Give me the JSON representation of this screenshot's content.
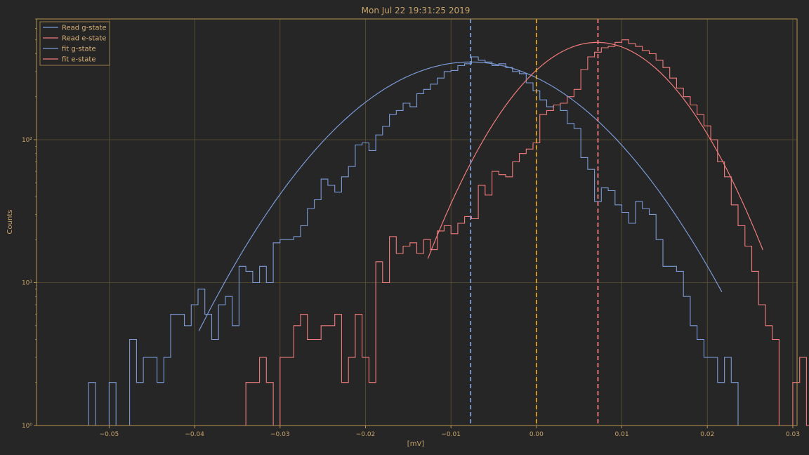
{
  "chart_data": {
    "type": "line",
    "title": "Mon Jul 22 19:31:25 2019",
    "xlabel": "[mV]",
    "ylabel": "Counts",
    "xlim": [
      -0.0585,
      0.0305
    ],
    "ylim": [
      1,
      700
    ],
    "y_scale": "log",
    "grid": true,
    "legend_position": "top-left",
    "x_ticks": [
      -0.05,
      -0.04,
      -0.03,
      -0.02,
      -0.01,
      0.0,
      0.01,
      0.02,
      0.03
    ],
    "x_tick_labels": [
      "−0.05",
      "−0.04",
      "−0.03",
      "−0.02",
      "−0.01",
      "0.00",
      "0.01",
      "0.02",
      "0.03"
    ],
    "y_ticks": [
      1,
      10,
      100
    ],
    "y_tick_labels": [
      "10⁰",
      "10¹",
      "10²"
    ],
    "colors": {
      "background": "#262626",
      "grid": "#5e5233",
      "axis": "#b5934f",
      "text": "#c8a46a",
      "g_state": "#7c9ad6",
      "e_state": "#f27c7c",
      "threshold": "#e0a020"
    },
    "histograms": [
      {
        "name": "Read g-state",
        "color": "#7c9ad6",
        "bins": [
          [
            -0.052,
            2
          ],
          [
            -0.0512,
            1
          ],
          [
            -0.0504,
            1
          ],
          [
            -0.0496,
            2
          ],
          [
            -0.0488,
            1
          ],
          [
            -0.048,
            1
          ],
          [
            -0.0472,
            4
          ],
          [
            -0.0464,
            2
          ],
          [
            -0.0456,
            3
          ],
          [
            -0.0448,
            3
          ],
          [
            -0.044,
            2
          ],
          [
            -0.0432,
            3
          ],
          [
            -0.0424,
            6
          ],
          [
            -0.0416,
            6
          ],
          [
            -0.0408,
            5
          ],
          [
            -0.04,
            7
          ],
          [
            -0.0392,
            9
          ],
          [
            -0.0384,
            6
          ],
          [
            -0.0376,
            4
          ],
          [
            -0.0368,
            7
          ],
          [
            -0.036,
            8
          ],
          [
            -0.0352,
            5
          ],
          [
            -0.0344,
            13
          ],
          [
            -0.0336,
            12
          ],
          [
            -0.0328,
            10
          ],
          [
            -0.032,
            13
          ],
          [
            -0.0312,
            10
          ],
          [
            -0.0304,
            19
          ],
          [
            -0.0296,
            20
          ],
          [
            -0.0288,
            20
          ],
          [
            -0.028,
            21
          ],
          [
            -0.0272,
            25
          ],
          [
            -0.0264,
            33
          ],
          [
            -0.0256,
            38
          ],
          [
            -0.0248,
            53
          ],
          [
            -0.024,
            48
          ],
          [
            -0.0232,
            43
          ],
          [
            -0.0224,
            55
          ],
          [
            -0.0216,
            65
          ],
          [
            -0.0208,
            92
          ],
          [
            -0.02,
            95
          ],
          [
            -0.0192,
            84
          ],
          [
            -0.0184,
            108
          ],
          [
            -0.0176,
            124
          ],
          [
            -0.0168,
            150
          ],
          [
            -0.016,
            160
          ],
          [
            -0.0152,
            180
          ],
          [
            -0.0144,
            170
          ],
          [
            -0.0136,
            210
          ],
          [
            -0.0128,
            225
          ],
          [
            -0.012,
            245
          ],
          [
            -0.0112,
            270
          ],
          [
            -0.0104,
            300
          ],
          [
            -0.0096,
            305
          ],
          [
            -0.0088,
            330
          ],
          [
            -0.008,
            340
          ],
          [
            -0.0072,
            380
          ],
          [
            -0.0064,
            360
          ],
          [
            -0.0056,
            350
          ],
          [
            -0.0048,
            330
          ],
          [
            -0.004,
            340
          ],
          [
            -0.0032,
            320
          ],
          [
            -0.0024,
            300
          ],
          [
            -0.0016,
            290
          ],
          [
            -0.0008,
            250
          ],
          [
            0.0,
            220
          ],
          [
            0.0008,
            190
          ],
          [
            0.0016,
            170
          ],
          [
            0.0024,
            175
          ],
          [
            0.0032,
            160
          ],
          [
            0.004,
            130
          ],
          [
            0.0048,
            120
          ],
          [
            0.0056,
            75
          ],
          [
            0.0064,
            62
          ],
          [
            0.0072,
            37
          ],
          [
            0.008,
            46
          ],
          [
            0.0088,
            44
          ],
          [
            0.0096,
            35
          ],
          [
            0.0104,
            31
          ],
          [
            0.0112,
            26
          ],
          [
            0.012,
            37
          ],
          [
            0.0128,
            33
          ],
          [
            0.0136,
            30
          ],
          [
            0.0144,
            20
          ],
          [
            0.0152,
            13
          ],
          [
            0.016,
            13
          ],
          [
            0.0168,
            12
          ],
          [
            0.0176,
            8
          ],
          [
            0.0184,
            5
          ],
          [
            0.0192,
            4
          ],
          [
            0.02,
            3
          ],
          [
            0.0208,
            3
          ],
          [
            0.0216,
            2
          ],
          [
            0.0224,
            3
          ],
          [
            0.0232,
            2
          ],
          [
            0.024,
            1
          ]
        ]
      },
      {
        "name": "Read e-state",
        "color": "#f27c7c",
        "bins": [
          [
            -0.0336,
            2
          ],
          [
            -0.0328,
            2
          ],
          [
            -0.032,
            3
          ],
          [
            -0.0312,
            2
          ],
          [
            -0.0304,
            1
          ],
          [
            -0.0296,
            3
          ],
          [
            -0.0288,
            3
          ],
          [
            -0.028,
            5
          ],
          [
            -0.0272,
            6
          ],
          [
            -0.0264,
            4
          ],
          [
            -0.0256,
            4
          ],
          [
            -0.0248,
            5
          ],
          [
            -0.024,
            5
          ],
          [
            -0.0232,
            6
          ],
          [
            -0.0224,
            2
          ],
          [
            -0.0216,
            3
          ],
          [
            -0.0208,
            6
          ],
          [
            -0.02,
            3
          ],
          [
            -0.0192,
            2
          ],
          [
            -0.0184,
            14
          ],
          [
            -0.0176,
            10
          ],
          [
            -0.0168,
            21
          ],
          [
            -0.016,
            16
          ],
          [
            -0.0152,
            18
          ],
          [
            -0.0144,
            19
          ],
          [
            -0.0136,
            16
          ],
          [
            -0.0128,
            20
          ],
          [
            -0.012,
            17
          ],
          [
            -0.0112,
            23
          ],
          [
            -0.0104,
            25
          ],
          [
            -0.0096,
            22
          ],
          [
            -0.0088,
            26
          ],
          [
            -0.008,
            29
          ],
          [
            -0.0072,
            28
          ],
          [
            -0.0064,
            48
          ],
          [
            -0.0056,
            41
          ],
          [
            -0.0048,
            60
          ],
          [
            -0.004,
            57
          ],
          [
            -0.0032,
            55
          ],
          [
            -0.0024,
            70
          ],
          [
            -0.0016,
            80
          ],
          [
            -0.0008,
            86
          ],
          [
            0.0,
            95
          ],
          [
            0.0008,
            150
          ],
          [
            0.0016,
            160
          ],
          [
            0.0024,
            175
          ],
          [
            0.0032,
            180
          ],
          [
            0.004,
            200
          ],
          [
            0.0048,
            225
          ],
          [
            0.0056,
            310
          ],
          [
            0.0064,
            380
          ],
          [
            0.0072,
            410
          ],
          [
            0.008,
            440
          ],
          [
            0.0088,
            450
          ],
          [
            0.0096,
            480
          ],
          [
            0.0104,
            500
          ],
          [
            0.0112,
            470
          ],
          [
            0.012,
            450
          ],
          [
            0.0128,
            420
          ],
          [
            0.0136,
            400
          ],
          [
            0.0144,
            360
          ],
          [
            0.0152,
            320
          ],
          [
            0.016,
            270
          ],
          [
            0.0168,
            230
          ],
          [
            0.0176,
            200
          ],
          [
            0.0184,
            175
          ],
          [
            0.0192,
            150
          ],
          [
            0.02,
            125
          ],
          [
            0.0208,
            100
          ],
          [
            0.0216,
            70
          ],
          [
            0.0224,
            55
          ],
          [
            0.0232,
            35
          ],
          [
            0.024,
            25
          ],
          [
            0.0248,
            18
          ],
          [
            0.0256,
            12
          ],
          [
            0.0264,
            7
          ],
          [
            0.0272,
            5
          ],
          [
            0.028,
            4
          ],
          [
            0.0288,
            1
          ],
          [
            0.0296,
            1
          ],
          [
            0.0304,
            2
          ],
          [
            0.0312,
            3
          ],
          [
            0.032,
            1
          ]
        ]
      }
    ],
    "fits": [
      {
        "name": "fit g-state",
        "color": "#7c9ad6",
        "mu": -0.0077,
        "sigma": 0.0108,
        "amplitude": 350,
        "x_range": [
          -0.0395,
          0.0217
        ]
      },
      {
        "name": "fit e-state",
        "color": "#f27c7c",
        "mu": 0.0071,
        "sigma": 0.0075,
        "amplitude": 480,
        "x_range": [
          -0.0127,
          0.0265
        ]
      }
    ],
    "vlines": [
      {
        "x": -0.0077,
        "color": "#7c9ad6",
        "style": "dashed"
      },
      {
        "x": 0.0,
        "color": "#e0a020",
        "style": "dashed"
      },
      {
        "x": 0.0072,
        "color": "#f27c7c",
        "style": "dashed"
      }
    ],
    "legend": [
      {
        "label": "Read g-state",
        "color": "#7c9ad6"
      },
      {
        "label": "Read e-state",
        "color": "#f27c7c"
      },
      {
        "label": "fit g-state",
        "color": "#7c9ad6"
      },
      {
        "label": "fit e-state",
        "color": "#f27c7c"
      }
    ]
  }
}
